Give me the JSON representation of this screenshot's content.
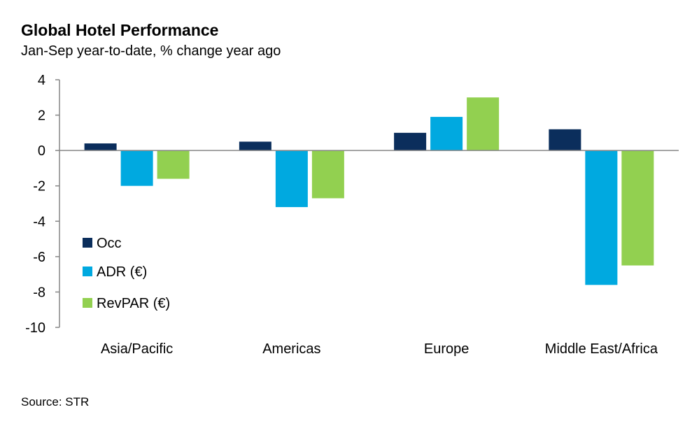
{
  "chart_data": {
    "type": "bar",
    "title": "Global Hotel Performance",
    "subtitle": "Jan-Sep year-to-date, % change year ago",
    "source": "Source: STR",
    "categories": [
      "Asia/Pacific",
      "Americas",
      "Europe",
      "Middle East/Africa"
    ],
    "series": [
      {
        "name": "Occ",
        "color": "#0b2e5c",
        "values": [
          0.4,
          0.5,
          1.0,
          1.2
        ]
      },
      {
        "name": "ADR (€)",
        "color": "#00a9e0",
        "values": [
          -2.0,
          -3.2,
          1.9,
          -7.6
        ]
      },
      {
        "name": "RevPAR (€)",
        "color": "#92d050",
        "values": [
          -1.6,
          -2.7,
          3.0,
          -6.5
        ]
      }
    ],
    "ylim": [
      -10,
      4
    ],
    "yticks": [
      4,
      2,
      0,
      -2,
      -4,
      -6,
      -8,
      -10
    ],
    "grid": false,
    "legend": "left"
  }
}
